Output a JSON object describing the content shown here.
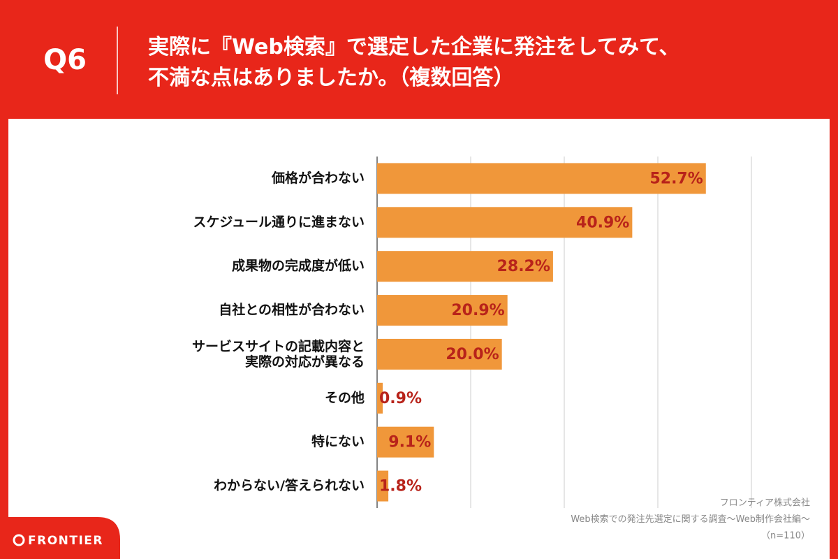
{
  "question": "Q6",
  "logo": "FRONTIER",
  "chart_data": {
    "type": "bar",
    "orientation": "horizontal",
    "title": "実際に『Web検索』で選定した企業に発注をしてみて、\n不満な点はありましたか。（複数回答）",
    "categories": [
      "価格が合わない",
      "スケジュール通りに進まない",
      "成果物の完成度が低い",
      "自社との相性が合わない",
      "サービスサイトの記載内容と\n実際の対応が異なる",
      "その他",
      "特にない",
      "わからない/答えられない"
    ],
    "values": [
      52.7,
      40.9,
      28.2,
      20.9,
      20.0,
      0.9,
      9.1,
      1.8
    ],
    "value_labels": [
      "52.7%",
      "40.9%",
      "28.2%",
      "20.9%",
      "20.0%",
      "0.9%",
      "9.1%",
      "1.8%"
    ],
    "color": "#f0973a",
    "xlim": [
      0,
      60
    ],
    "xticks": [
      0,
      15,
      30,
      45,
      60
    ],
    "grid": true,
    "source": [
      "フロンティア株式会社",
      "Web検索での発注先選定に関する調査〜Web制作会社編〜",
      "（n=110）"
    ]
  }
}
